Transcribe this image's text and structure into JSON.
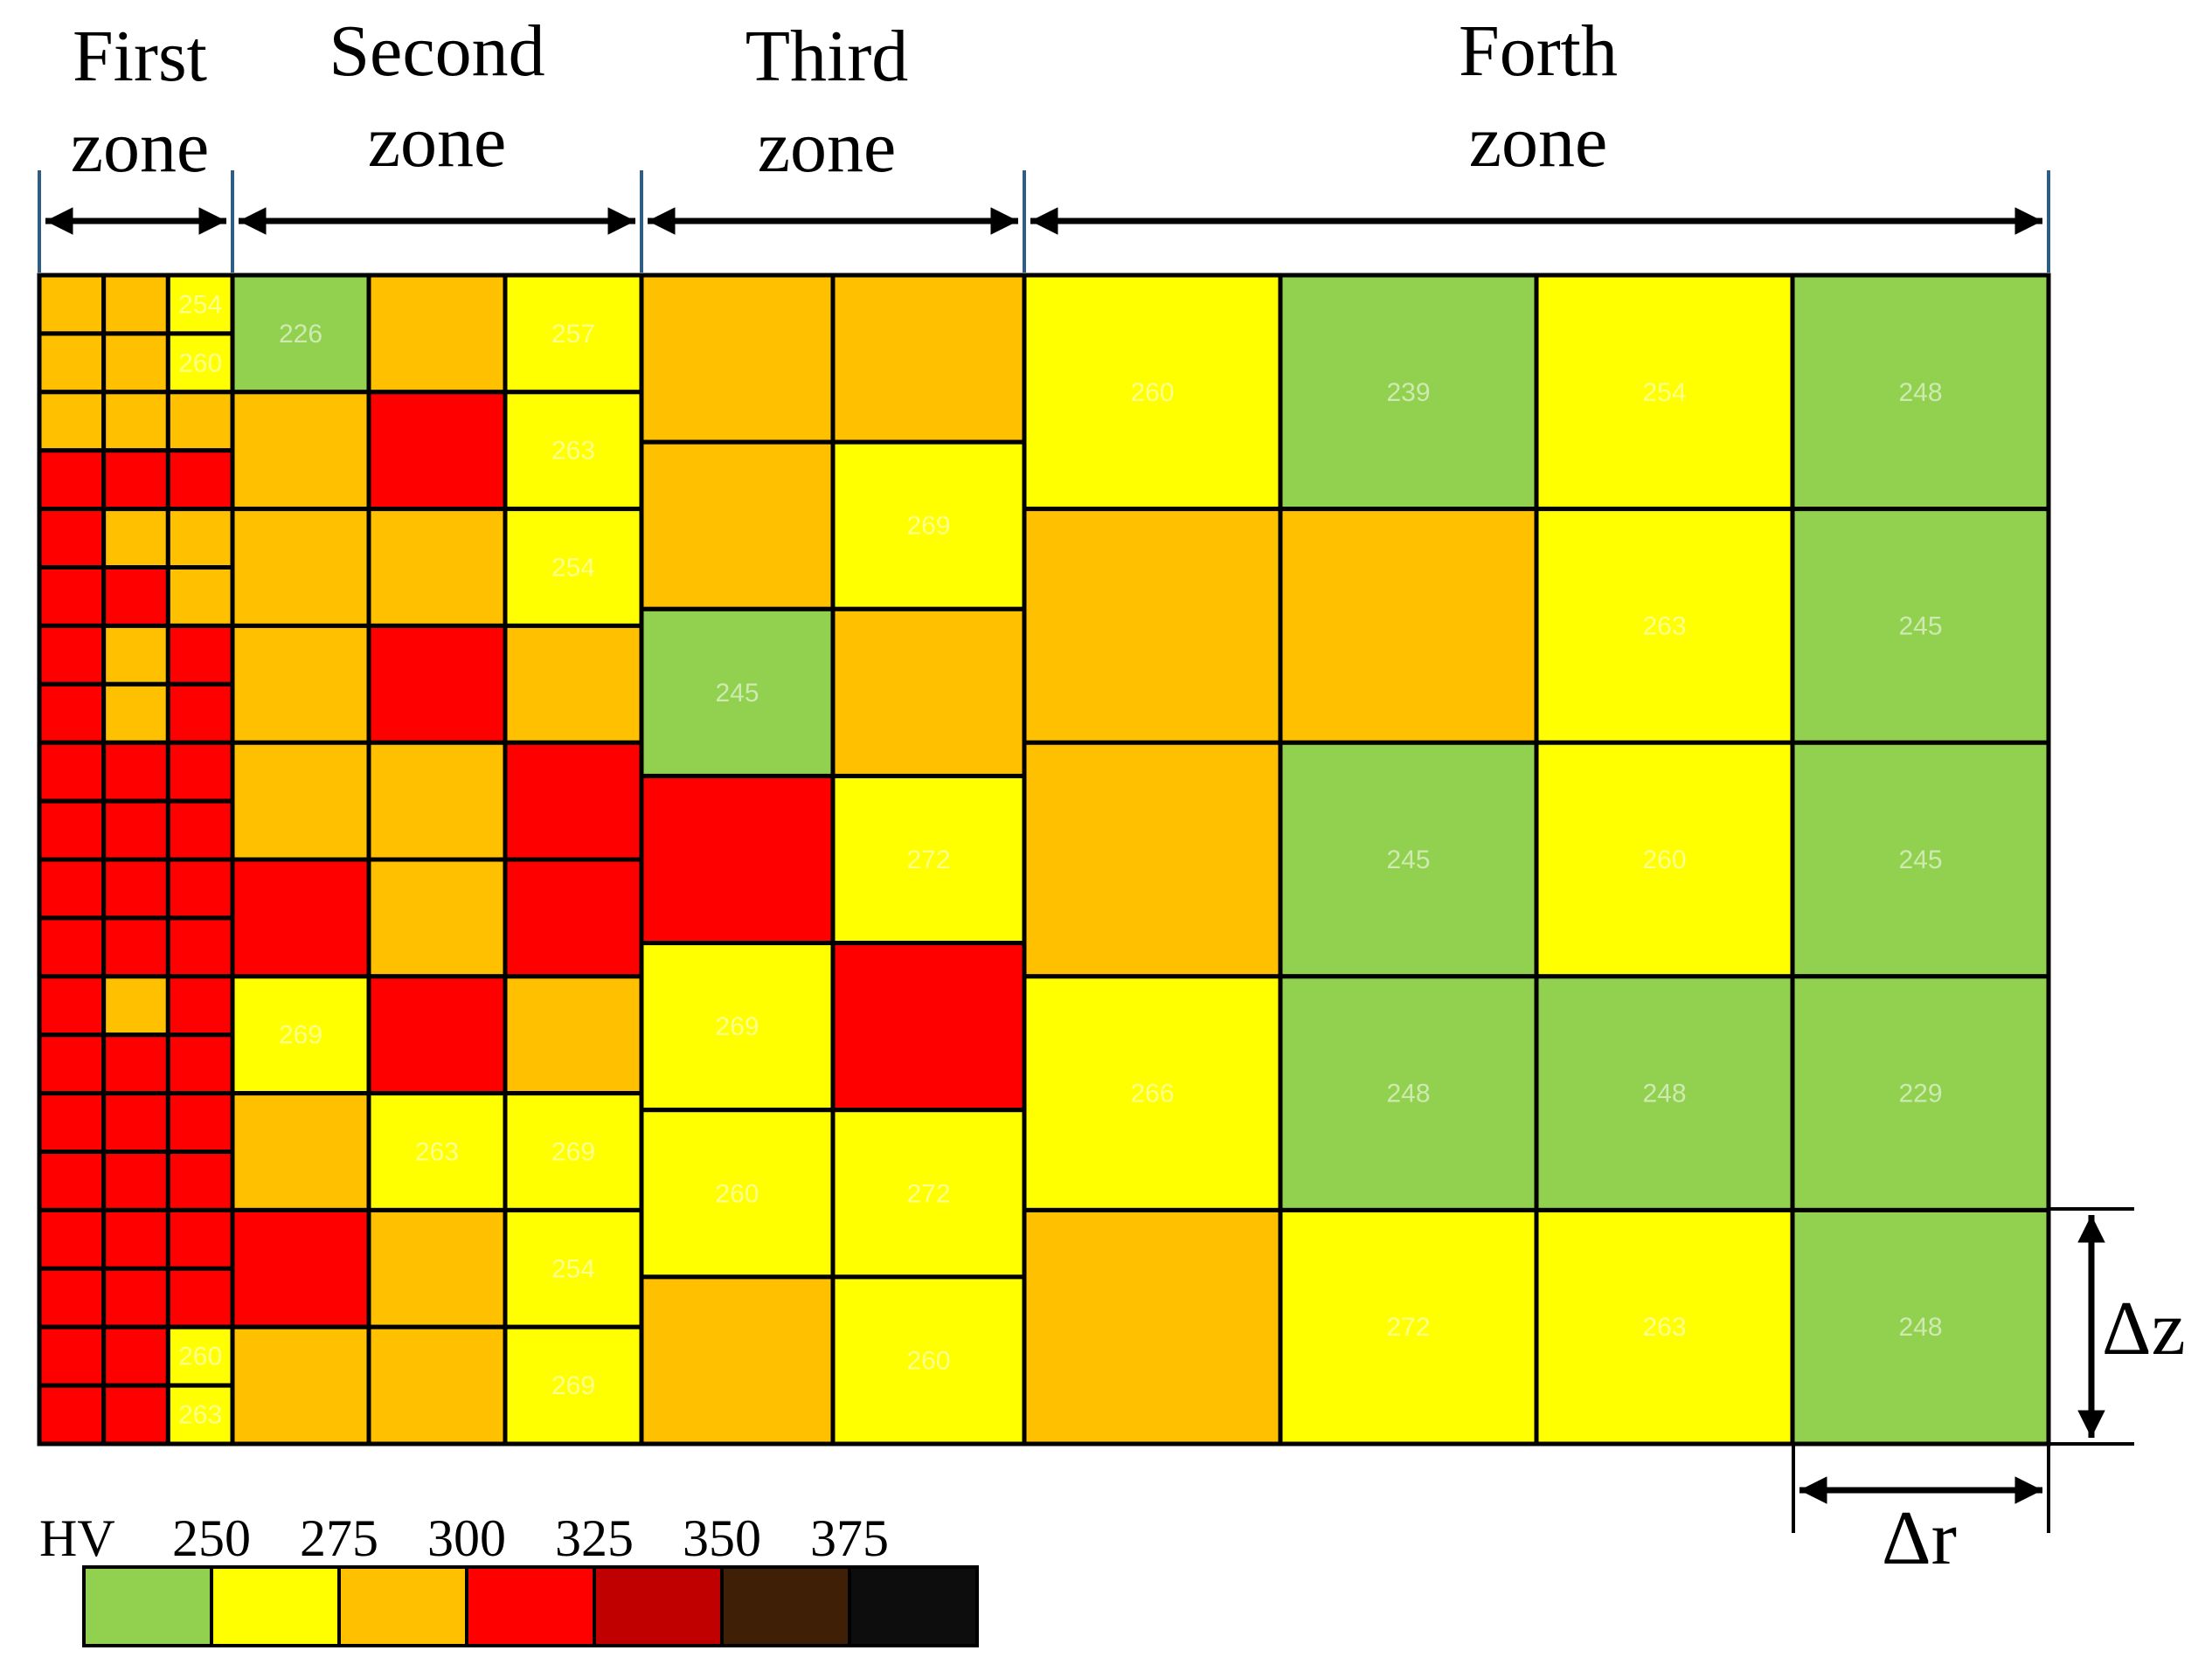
{
  "zones": [
    {
      "line1": "First",
      "line2": "zone"
    },
    {
      "line1": "Second",
      "line2": "zone"
    },
    {
      "line1": "Third",
      "line2": "zone"
    },
    {
      "line1": "Forth",
      "line2": "zone"
    }
  ],
  "legend": {
    "unit": "HV",
    "ticks": [
      "250",
      "275",
      "300",
      "325",
      "350",
      "375"
    ],
    "colors": [
      "#92d050",
      "#ffff00",
      "#ffc000",
      "#ff0000",
      "#c00000",
      "#3f1f06",
      "#0d0d0d"
    ]
  },
  "delta_z": "Δz",
  "delta_r": "Δr",
  "palette": {
    "green": "#92d050",
    "yellow": "#ffff00",
    "orange": "#ffc000",
    "red": "#ff0000"
  },
  "grid": {
    "zone1": {
      "columns": 3,
      "rows": 20,
      "cells": [
        [
          "orange",
          "orange",
          "yellow"
        ],
        [
          "orange",
          "orange",
          "yellow"
        ],
        [
          "orange",
          "orange",
          "orange"
        ],
        [
          "red",
          "red",
          "red"
        ],
        [
          "red",
          "orange",
          "orange"
        ],
        [
          "red",
          "red",
          "orange"
        ],
        [
          "red",
          "orange",
          "red"
        ],
        [
          "red",
          "orange",
          "red"
        ],
        [
          "red",
          "red",
          "red"
        ],
        [
          "red",
          "red",
          "red"
        ],
        [
          "red",
          "red",
          "red"
        ],
        [
          "red",
          "red",
          "red"
        ],
        [
          "red",
          "orange",
          "red"
        ],
        [
          "red",
          "red",
          "red"
        ],
        [
          "red",
          "red",
          "red"
        ],
        [
          "red",
          "red",
          "red"
        ],
        [
          "red",
          "red",
          "red"
        ],
        [
          "red",
          "red",
          "red"
        ],
        [
          "red",
          "red",
          "yellow"
        ],
        [
          "red",
          "red",
          "yellow"
        ]
      ],
      "values": [
        [
          "",
          "",
          "254"
        ],
        [
          "",
          "",
          "260"
        ],
        [
          "",
          "",
          ""
        ],
        [
          "",
          "",
          ""
        ],
        [
          "",
          "",
          ""
        ],
        [
          "",
          "",
          ""
        ],
        [
          "",
          "",
          ""
        ],
        [
          "",
          "",
          ""
        ],
        [
          "",
          "",
          ""
        ],
        [
          "",
          "",
          ""
        ],
        [
          "",
          "",
          ""
        ],
        [
          "",
          "",
          ""
        ],
        [
          "",
          "",
          ""
        ],
        [
          "",
          "",
          ""
        ],
        [
          "",
          "",
          ""
        ],
        [
          "",
          "",
          ""
        ],
        [
          "",
          "",
          ""
        ],
        [
          "",
          "",
          ""
        ],
        [
          "",
          "",
          "260"
        ],
        [
          "",
          "",
          "263"
        ]
      ]
    },
    "zone2": {
      "columns": 3,
      "rows": 10,
      "cells": [
        [
          "green",
          "orange",
          "yellow"
        ],
        [
          "orange",
          "red",
          "yellow"
        ],
        [
          "orange",
          "orange",
          "yellow"
        ],
        [
          "orange",
          "red",
          "orange"
        ],
        [
          "orange",
          "orange",
          "red"
        ],
        [
          "red",
          "orange",
          "red"
        ],
        [
          "yellow",
          "red",
          "orange"
        ],
        [
          "orange",
          "yellow",
          "yellow"
        ],
        [
          "red",
          "orange",
          "yellow"
        ],
        [
          "orange",
          "orange",
          "yellow"
        ]
      ],
      "values": [
        [
          "226",
          "",
          "257"
        ],
        [
          "",
          "",
          "263"
        ],
        [
          "",
          "",
          "254"
        ],
        [
          "",
          "",
          ""
        ],
        [
          "",
          "",
          ""
        ],
        [
          "",
          "",
          ""
        ],
        [
          "269",
          "",
          ""
        ],
        [
          "",
          "263",
          "269"
        ],
        [
          "",
          "",
          "254"
        ],
        [
          "",
          "",
          "269"
        ]
      ]
    },
    "zone3": {
      "columns": 2,
      "rows": 7,
      "cells": [
        [
          "orange",
          "orange"
        ],
        [
          "orange",
          "yellow"
        ],
        [
          "green",
          "orange"
        ],
        [
          "red",
          "yellow"
        ],
        [
          "yellow",
          "red"
        ],
        [
          "yellow",
          "yellow"
        ],
        [
          "orange",
          "yellow"
        ]
      ],
      "values": [
        [
          "",
          ""
        ],
        [
          "",
          "269"
        ],
        [
          "245",
          ""
        ],
        [
          "",
          "272"
        ],
        [
          "269",
          ""
        ],
        [
          "260",
          "272"
        ],
        [
          "",
          "260"
        ]
      ]
    },
    "zone4": {
      "columns": 4,
      "rows": 5,
      "cells": [
        [
          "yellow",
          "green",
          "yellow",
          "green"
        ],
        [
          "orange",
          "orange",
          "yellow",
          "green"
        ],
        [
          "orange",
          "green",
          "yellow",
          "green"
        ],
        [
          "yellow",
          "green",
          "green",
          "green"
        ],
        [
          "orange",
          "yellow",
          "yellow",
          "green"
        ]
      ],
      "values": [
        [
          "260",
          "239",
          "254",
          "248"
        ],
        [
          "",
          "",
          "263",
          "245"
        ],
        [
          "",
          "245",
          "260",
          "245"
        ],
        [
          "266",
          "248",
          "248",
          "229"
        ],
        [
          "",
          "272",
          "263",
          "248"
        ]
      ]
    }
  }
}
